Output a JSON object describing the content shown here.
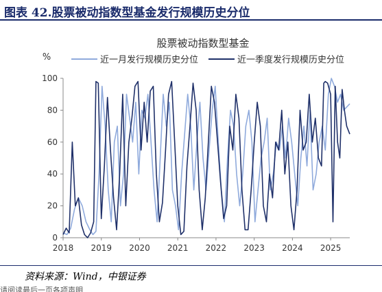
{
  "figure_title": "图表 42.股票被动指数型基金发行规模历史分位",
  "source_note": "资料来源：Wind，中银证券",
  "footer_fragment": "请阅读最后一页各项声明",
  "colors": {
    "axis_text": "#333333",
    "title_navy": "#1a2b6b"
  },
  "chart_data": {
    "type": "line",
    "title": "股票被动指数型基金",
    "ylabel": "%",
    "ylim": [
      0,
      100
    ],
    "yticks": [
      0,
      20,
      40,
      60,
      80,
      100
    ],
    "xlim": [
      2018.0,
      2025.5
    ],
    "xticks": [
      "2018",
      "2019",
      "2020",
      "2021",
      "2022",
      "2023",
      "2024",
      "2025"
    ],
    "grid": false,
    "legend": "top",
    "series": [
      {
        "name": "近一月发行规模历史分位",
        "color": "#8faadc",
        "x": [
          2018.0,
          2018.1,
          2018.2,
          2018.3,
          2018.4,
          2018.5,
          2018.6,
          2018.7,
          2018.78,
          2018.86,
          2018.94,
          2019.02,
          2019.1,
          2019.18,
          2019.26,
          2019.34,
          2019.42,
          2019.5,
          2019.58,
          2019.66,
          2019.74,
          2019.82,
          2019.9,
          2019.98,
          2020.06,
          2020.14,
          2020.22,
          2020.3,
          2020.38,
          2020.46,
          2020.54,
          2020.62,
          2020.7,
          2020.78,
          2020.86,
          2020.94,
          2021.02,
          2021.1,
          2021.18,
          2021.26,
          2021.34,
          2021.42,
          2021.5,
          2021.58,
          2021.66,
          2021.74,
          2021.82,
          2021.9,
          2021.98,
          2022.06,
          2022.14,
          2022.22,
          2022.3,
          2022.38,
          2022.46,
          2022.54,
          2022.62,
          2022.7,
          2022.78,
          2022.86,
          2022.94,
          2023.02,
          2023.1,
          2023.18,
          2023.26,
          2023.34,
          2023.42,
          2023.5,
          2023.58,
          2023.66,
          2023.74,
          2023.82,
          2023.9,
          2023.98,
          2024.06,
          2024.14,
          2024.22,
          2024.3,
          2024.38,
          2024.46,
          2024.54,
          2024.62,
          2024.7,
          2024.78,
          2024.86,
          2024.94,
          2025.02,
          2025.1,
          2025.18,
          2025.26,
          2025.34,
          2025.42,
          2025.5
        ],
        "y": [
          3,
          2,
          6,
          18,
          25,
          20,
          10,
          5,
          2,
          4,
          40,
          95,
          70,
          30,
          10,
          60,
          70,
          20,
          40,
          90,
          75,
          60,
          85,
          40,
          80,
          75,
          90,
          60,
          30,
          10,
          50,
          90,
          70,
          85,
          30,
          20,
          5,
          40,
          65,
          90,
          70,
          30,
          60,
          85,
          50,
          30,
          55,
          80,
          95,
          60,
          30,
          10,
          50,
          80,
          70,
          40,
          20,
          40,
          70,
          80,
          60,
          10,
          30,
          50,
          60,
          75,
          30,
          40,
          60,
          55,
          70,
          50,
          75,
          60,
          40,
          20,
          50,
          70,
          45,
          80,
          30,
          40,
          60,
          70,
          55,
          90,
          100,
          95,
          85,
          90,
          80,
          82,
          84
        ]
      },
      {
        "name": "近一季度发行规模历史分位",
        "color": "#1f3069",
        "x": [
          2018.0,
          2018.08,
          2018.16,
          2018.24,
          2018.32,
          2018.4,
          2018.48,
          2018.56,
          2018.64,
          2018.72,
          2018.8,
          2018.86,
          2018.92,
          2019.0,
          2019.08,
          2019.16,
          2019.24,
          2019.32,
          2019.4,
          2019.48,
          2019.56,
          2019.64,
          2019.72,
          2019.8,
          2019.88,
          2019.96,
          2020.04,
          2020.12,
          2020.2,
          2020.28,
          2020.36,
          2020.44,
          2020.52,
          2020.6,
          2020.68,
          2020.76,
          2020.84,
          2020.92,
          2021.0,
          2021.08,
          2021.16,
          2021.24,
          2021.32,
          2021.4,
          2021.48,
          2021.56,
          2021.64,
          2021.72,
          2021.8,
          2021.88,
          2021.96,
          2022.04,
          2022.12,
          2022.2,
          2022.28,
          2022.36,
          2022.44,
          2022.52,
          2022.6,
          2022.68,
          2022.76,
          2022.84,
          2022.92,
          2023.0,
          2023.08,
          2023.16,
          2023.24,
          2023.32,
          2023.4,
          2023.48,
          2023.56,
          2023.64,
          2023.72,
          2023.8,
          2023.88,
          2023.96,
          2024.04,
          2024.12,
          2024.2,
          2024.28,
          2024.36,
          2024.44,
          2024.52,
          2024.6,
          2024.68,
          2024.76,
          2024.82,
          2024.86,
          2024.92,
          2025.0,
          2025.06,
          2025.12,
          2025.18,
          2025.24,
          2025.3,
          2025.36,
          2025.42,
          2025.5
        ],
        "y": [
          2,
          6,
          3,
          60,
          20,
          25,
          8,
          2,
          0,
          3,
          10,
          98,
          97,
          12,
          45,
          88,
          55,
          25,
          5,
          40,
          90,
          20,
          60,
          75,
          95,
          98,
          55,
          85,
          60,
          92,
          95,
          40,
          10,
          22,
          55,
          90,
          98,
          60,
          20,
          2,
          4,
          45,
          70,
          97,
          80,
          30,
          5,
          25,
          60,
          95,
          85,
          60,
          35,
          12,
          20,
          70,
          55,
          90,
          75,
          30,
          5,
          5,
          30,
          60,
          85,
          70,
          20,
          10,
          40,
          25,
          60,
          55,
          80,
          40,
          60,
          20,
          5,
          30,
          80,
          55,
          60,
          90,
          60,
          75,
          50,
          45,
          97,
          98,
          97,
          90,
          10,
          95,
          60,
          50,
          93,
          80,
          70,
          65
        ]
      }
    ]
  }
}
